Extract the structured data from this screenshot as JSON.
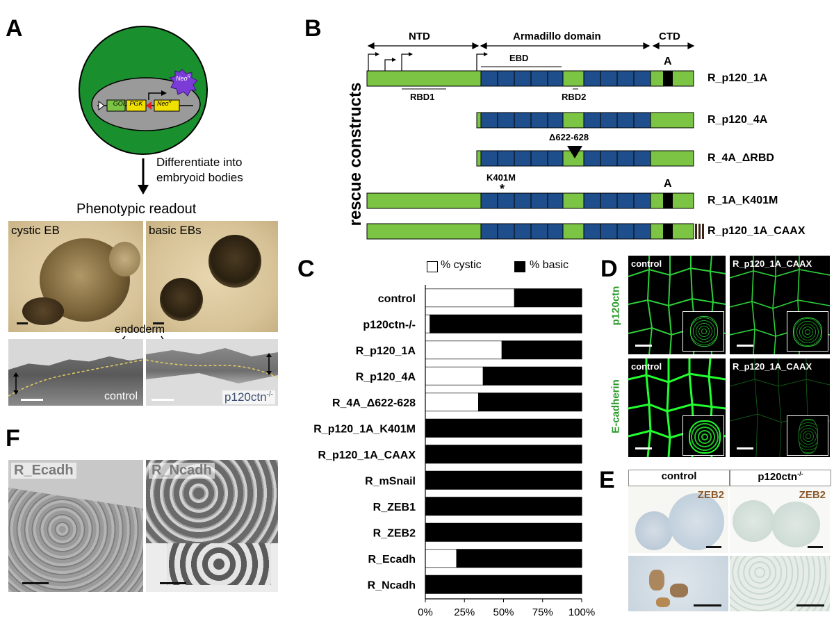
{
  "panels": {
    "A": {
      "letter": "A",
      "cassette": {
        "goi": "GOI",
        "pgk": "PGK",
        "neo": "Neo",
        "neo_sup": "R"
      },
      "arrow_label_1": "Differentiate into",
      "arrow_label_2": "embryoid bodies",
      "readout_title": "Phenotypic readout",
      "photo1_label": "cystic EB",
      "photo2_label": "basic EBs",
      "endoderm_label": "endoderm",
      "photo3_label": "control",
      "photo4_label_base": "p120ctn",
      "photo4_label_sup": "-/-"
    },
    "B": {
      "letter": "B",
      "side_label": "rescue constructs",
      "domains": {
        "ntd": "NTD",
        "arm": "Armadillo domain",
        "ctd": "CTD"
      },
      "ebd": "EBD",
      "rbd1": "RBD1",
      "rbd2": "RBD2",
      "exon_a": "A",
      "deletion": "Δ622-628",
      "mutation": "K401M",
      "mutation_mark": "*",
      "constructs": [
        "R_p120_1A",
        "R_p120_4A",
        "R_4A_ΔRBD",
        "R_1A_K401M",
        "R_p120_1A_CAAX"
      ]
    },
    "C": {
      "letter": "C",
      "legend_cystic": "% cystic",
      "legend_basic": "% basic"
    },
    "D": {
      "letter": "D",
      "row1_label": "p120ctn",
      "row2_label": "E-cadherin",
      "tl": "control",
      "tr": "R_p120_1A_CAAX",
      "bl": "control",
      "br": "R_p120_1A_CAAX"
    },
    "E": {
      "letter": "E",
      "col1": "control",
      "col2_base": "p120ctn",
      "col2_sup": "-/-",
      "stain1": "ZEB2",
      "stain2": "ZEB2"
    },
    "F": {
      "letter": "F",
      "left": "R_Ecadh",
      "right": "R_Ncadh"
    }
  },
  "colors": {
    "green_domain": "#7cc443",
    "blue_repeat": "#1f4e8c",
    "cell_green": "#1a8f2e",
    "conf_green": "#22d030",
    "label_green": "#2a9a2a",
    "ihc_brown": "#8a5a2b"
  },
  "chart_data": {
    "type": "bar",
    "orientation": "horizontal",
    "stacked": true,
    "categories": [
      "control",
      "p120ctn-/-",
      "R_p120_1A",
      "R_p120_4A",
      "R_4A_Δ622-628",
      "R_p120_1A_K401M",
      "R_p120_1A_CAAX",
      "R_mSnail",
      "R_ZEB1",
      "R_ZEB2",
      "R_Ecadh",
      "R_Ncadh"
    ],
    "series": [
      {
        "name": "% cystic",
        "values": [
          57,
          3,
          49,
          37,
          34,
          0,
          0,
          0,
          0,
          0,
          20,
          0
        ]
      },
      {
        "name": "% basic",
        "values": [
          43,
          97,
          51,
          63,
          66,
          100,
          100,
          100,
          100,
          100,
          80,
          100
        ]
      }
    ],
    "xlim": [
      0,
      100
    ],
    "xticks": [
      "0%",
      "25%",
      "50%",
      "75%",
      "100%"
    ],
    "legend": "top"
  }
}
